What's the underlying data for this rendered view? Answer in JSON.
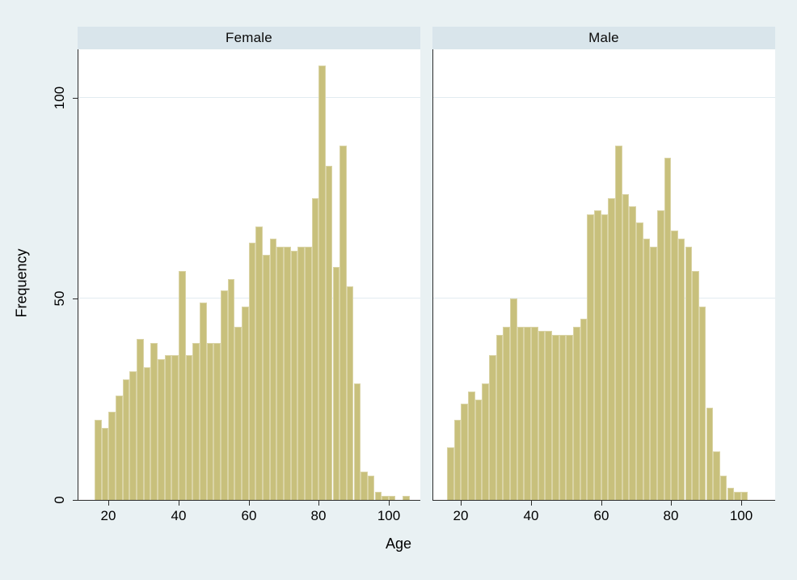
{
  "figure": {
    "background": "#E9F1F3",
    "plot_background": "#FFFFFF",
    "header_background": "#D9E5EB",
    "gridline_color": "#E2EBF0",
    "axis_color": "#2B2B2B",
    "bar_color": "#C8C07C",
    "bar_edge_color": "#DAD4A6"
  },
  "chart_data": {
    "type": "bar",
    "subtype": "histogram-faceted",
    "title": "",
    "xlabel": "Age",
    "ylabel": "Frequency",
    "xticks": [
      20,
      40,
      60,
      80,
      100
    ],
    "yticks": [
      0,
      50,
      100
    ],
    "xlim": [
      16,
      106
    ],
    "ylim": [
      0,
      112
    ],
    "grid": "horizontal gridlines at 50 and 100",
    "legend": "none",
    "bin_width": 2,
    "panels": [
      {
        "label": "Female",
        "bin_start": 16,
        "values": [
          20,
          18,
          22,
          26,
          30,
          32,
          40,
          33,
          39,
          35,
          36,
          36,
          57,
          36,
          39,
          49,
          39,
          39,
          52,
          55,
          43,
          48,
          64,
          68,
          61,
          65,
          63,
          63,
          62,
          63,
          63,
          75,
          108,
          83,
          58,
          88,
          53,
          29,
          7,
          6,
          2,
          1,
          1,
          0,
          1
        ]
      },
      {
        "label": "Male",
        "bin_start": 16,
        "values": [
          13,
          20,
          24,
          27,
          25,
          29,
          36,
          41,
          43,
          50,
          43,
          43,
          43,
          42,
          42,
          41,
          41,
          41,
          43,
          45,
          71,
          72,
          71,
          75,
          88,
          76,
          73,
          69,
          65,
          63,
          72,
          85,
          67,
          65,
          63,
          57,
          48,
          23,
          12,
          6,
          3,
          2,
          2
        ]
      }
    ]
  }
}
